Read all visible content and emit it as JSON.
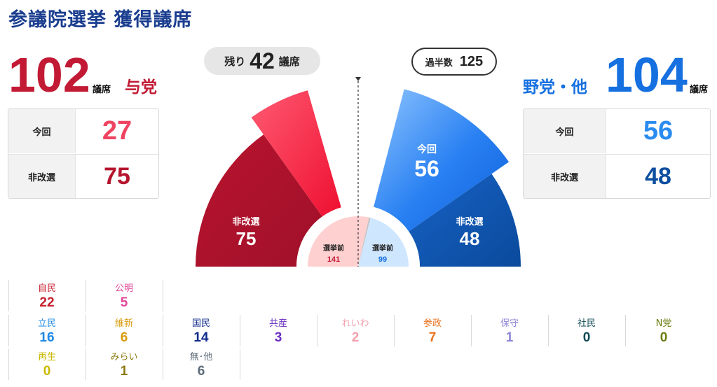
{
  "title": "参議院選挙 獲得議席",
  "unit": "議席",
  "ruling": {
    "total": "102",
    "label": "与党",
    "current_label": "今回",
    "current": "27",
    "holdover_label": "非改選",
    "holdover": "75",
    "color_dark": "#b5152f",
    "color_light": "#ea3a56"
  },
  "opposition": {
    "total": "104",
    "label": "野党・他",
    "current_label": "今回",
    "current": "56",
    "holdover_label": "非改選",
    "holdover": "48",
    "color_dark": "#0c56b0",
    "color_light": "#2a8cf0"
  },
  "remaining": {
    "prefix": "残り",
    "value": "42",
    "suffix": "議席"
  },
  "majority": {
    "label": "過半数",
    "value": "125"
  },
  "chart_data": {
    "type": "pie",
    "shape": "half-donut",
    "total_seats": 248,
    "majority": 125,
    "remaining": 42,
    "slices": [
      {
        "name": "非改選",
        "side": "与党",
        "value": 75,
        "color": "#b5152f"
      },
      {
        "name": "今回",
        "side": "与党",
        "value": 27,
        "color": "#f0243f"
      },
      {
        "name": "残り",
        "side": "",
        "value": 42,
        "color": "#ffffff"
      },
      {
        "name": "今回",
        "side": "野党・他",
        "value": 56,
        "color": "#1e7af0"
      },
      {
        "name": "非改選",
        "side": "野党・他",
        "value": 48,
        "color": "#0c56b0"
      }
    ],
    "labels": {
      "ruling_holdover": {
        "name": "非改選",
        "value": "75"
      },
      "opp_current": {
        "name": "今回",
        "value": "56"
      },
      "opp_holdover": {
        "name": "非改選",
        "value": "48"
      }
    },
    "before_election": {
      "label": "選挙前",
      "ruling": 141,
      "opposition": 99,
      "ruling_display": "141",
      "opposition_display": "99",
      "ruling_color": "#ffd0d0",
      "opposition_color": "#cfe6ff"
    }
  },
  "parties": [
    {
      "name": "自民",
      "value": "22",
      "color": "#c8202f"
    },
    {
      "name": "公明",
      "value": "5",
      "color": "#e0489a"
    },
    {
      "name": "立民",
      "value": "16",
      "color": "#1e88e5"
    },
    {
      "name": "維新",
      "value": "6",
      "color": "#d79c0e"
    },
    {
      "name": "国民",
      "value": "14",
      "color": "#0d2a8a"
    },
    {
      "name": "共産",
      "value": "3",
      "color": "#6a2fc0"
    },
    {
      "name": "れいわ",
      "value": "2",
      "color": "#f1a1ad"
    },
    {
      "name": "参政",
      "value": "7",
      "color": "#e8701a"
    },
    {
      "name": "保守",
      "value": "1",
      "color": "#8d86d6"
    },
    {
      "name": "社民",
      "value": "0",
      "color": "#0f4a55"
    },
    {
      "name": "N党",
      "value": "0",
      "color": "#6b7f10"
    },
    {
      "name": "再生",
      "value": "0",
      "color": "#c9b900"
    },
    {
      "name": "みらい",
      "value": "1",
      "color": "#8a7a10"
    },
    {
      "name": "無･他",
      "value": "6",
      "color": "#5d6b7a"
    }
  ]
}
